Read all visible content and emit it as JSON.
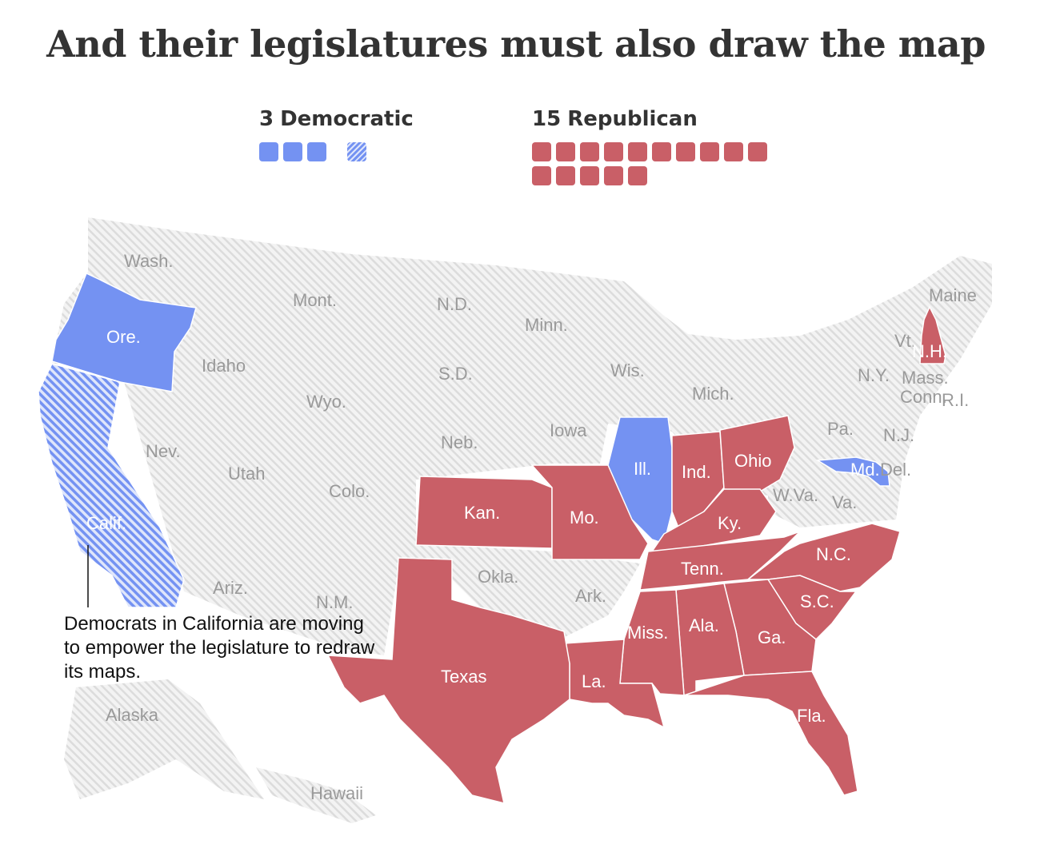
{
  "title": "And their legislatures must also draw the map",
  "legend": {
    "democratic": {
      "count": "3",
      "label": "Democratic",
      "total": 3,
      "pending": 1
    },
    "republican": {
      "count": "15",
      "label": "Republican",
      "total": 15
    }
  },
  "colors": {
    "democratic": "#7492f2",
    "republican": "#c95f67",
    "other": "#ececec",
    "other_hatch": "#dcdcdc"
  },
  "states": {
    "wash": "Wash.",
    "ore": "Ore.",
    "calif": "Calif.",
    "idaho": "Idaho",
    "nev": "Nev.",
    "mont": "Mont.",
    "wyo": "Wyo.",
    "utah": "Utah",
    "colo": "Colo.",
    "ariz": "Ariz.",
    "nm": "N.M.",
    "nd": "N.D.",
    "sd": "S.D.",
    "neb": "Neb.",
    "kan": "Kan.",
    "okla": "Okla.",
    "texas": "Texas",
    "minn": "Minn.",
    "iowa": "Iowa",
    "mo": "Mo.",
    "ark": "Ark.",
    "la": "La.",
    "wis": "Wis.",
    "ill": "Ill.",
    "mich": "Mich.",
    "ind": "Ind.",
    "ohio": "Ohio",
    "ky": "Ky.",
    "tenn": "Tenn.",
    "miss": "Miss.",
    "ala": "Ala.",
    "ga": "Ga.",
    "fla": "Fla.",
    "sc": "S.C.",
    "nc": "N.C.",
    "va": "Va.",
    "wva": "W.Va.",
    "pa": "Pa.",
    "ny": "N.Y.",
    "nj": "N.J.",
    "md": "Md.",
    "del": "Del.",
    "vt": "Vt.",
    "nh": "N.H.",
    "maine": "Maine",
    "mass": "Mass.",
    "conn": "Conn.",
    "ri": "R.I.",
    "alaska": "Alaska",
    "hawaii": "Hawaii"
  },
  "annotation": "Democrats in California are moving to empower the legislature to redraw its maps."
}
